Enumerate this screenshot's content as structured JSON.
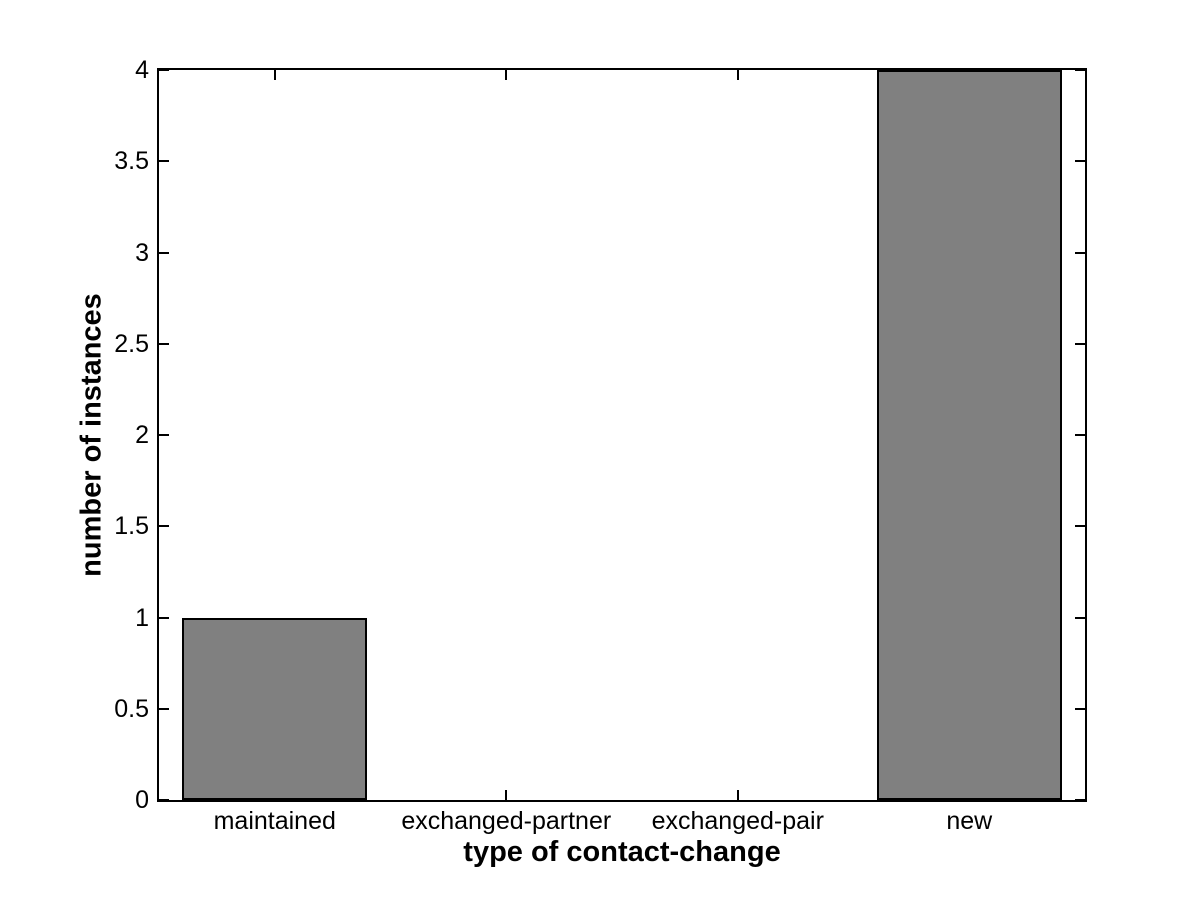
{
  "figure": {
    "background_color": "#ffffff",
    "axis_color": "#000000"
  },
  "chart_data": {
    "type": "bar",
    "categories": [
      "maintained",
      "exchanged-partner",
      "exchanged-pair",
      "new"
    ],
    "values": [
      1,
      0,
      0,
      4
    ],
    "xlabel": "type of contact-change",
    "ylabel": "number of instances",
    "ylim": [
      0,
      4
    ],
    "ytick_step": 0.5,
    "ytick_labels": [
      "0",
      "0.5",
      "1",
      "1.5",
      "2",
      "2.5",
      "3",
      "3.5",
      "4"
    ],
    "bar_color": "#808080",
    "bar_edge_color": "#000000",
    "bar_width_fraction": 0.8,
    "grid": false,
    "legend": null,
    "box": true,
    "tick_direction": "in"
  }
}
